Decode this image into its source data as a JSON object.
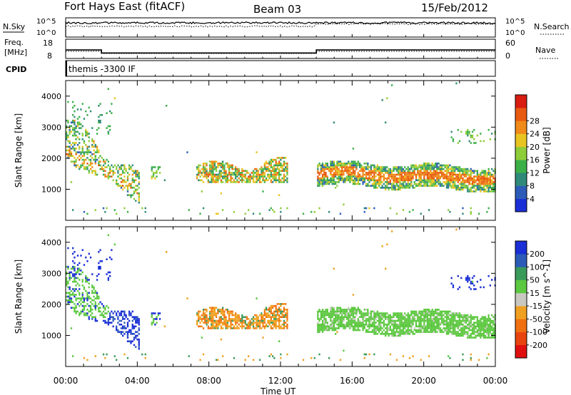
{
  "header": {
    "station": "Fort Hays East (fitACF)",
    "beam": "Beam 03",
    "date": "15/Feb/2012"
  },
  "noise_panel": {
    "left_label": "N.Sky",
    "right_label": "N.Search",
    "left_ticks": [
      "10^5",
      "10^0"
    ],
    "right_ticks": [
      "10^5",
      "10^0"
    ]
  },
  "freq_panel": {
    "label_line1": "Freq.",
    "label_line2": "[MHz]",
    "right_label": "Nave",
    "left_ticks": [
      "18",
      "8"
    ],
    "right_ticks": [
      "60",
      "0"
    ]
  },
  "cpid_panel": {
    "label": "CPID",
    "program": "themis -3300 IF"
  },
  "chart_data": [
    {
      "type": "heatmap",
      "title": "",
      "ylabel": "Slant Range [km]",
      "ylim": [
        0,
        4500
      ],
      "yticks": [
        "1000",
        "2000",
        "3000",
        "4000"
      ],
      "xlim": [
        "00:00",
        "24:00"
      ],
      "colorbar": {
        "label": "Power [dB]",
        "ticks": [
          "4",
          "8",
          "12",
          "16",
          "20",
          "24",
          "28"
        ],
        "colors": [
          "#1a2fd6",
          "#2c5cb8",
          "#2f8a7a",
          "#3cb048",
          "#8fcc3a",
          "#e8c420",
          "#f08a18",
          "#e85a10",
          "#d81c10"
        ]
      },
      "echo_regions": [
        {
          "t_start": 0.0,
          "t_end": 4.0,
          "range_km": [
            800,
            3600
          ],
          "dominant_db": 14
        },
        {
          "t_start": 4.8,
          "t_end": 5.2,
          "range_km": [
            1300,
            1700
          ],
          "dominant_db": 12
        },
        {
          "t_start": 7.2,
          "t_end": 12.3,
          "range_km": [
            1100,
            1800
          ],
          "dominant_db": 18
        },
        {
          "t_start": 14.0,
          "t_end": 24.0,
          "range_km": [
            1000,
            2000
          ],
          "dominant_db": 22
        }
      ]
    },
    {
      "type": "heatmap",
      "title": "",
      "ylabel": "Slant Range [km]",
      "ylim": [
        0,
        4500
      ],
      "yticks": [
        "1000",
        "2000",
        "3000",
        "4000"
      ],
      "xlim": [
        "00:00",
        "24:00"
      ],
      "colorbar": {
        "label": "Velocity [m s^-1]",
        "ticks": [
          "200",
          "100",
          "50",
          "15",
          "-15",
          "-50",
          "-100",
          "-200"
        ],
        "colors": [
          "#1a2fd6",
          "#2c5cb8",
          "#3a9a5a",
          "#5cc840",
          "#c8c8c0",
          "#f0a020",
          "#f07010",
          "#e84410",
          "#e01010"
        ]
      },
      "echo_regions": [
        {
          "t_start": 0.0,
          "t_end": 2.5,
          "range_km": [
            1600,
            2400
          ],
          "dominant_ms": 0
        },
        {
          "t_start": 1.0,
          "t_end": 3.5,
          "range_km": [
            1100,
            3600
          ],
          "dominant_ms": 150
        },
        {
          "t_start": 7.2,
          "t_end": 12.3,
          "range_km": [
            1100,
            1800
          ],
          "dominant_ms": -60
        },
        {
          "t_start": 14.0,
          "t_end": 24.0,
          "range_km": [
            1100,
            2000
          ],
          "dominant_ms": 0
        }
      ]
    }
  ],
  "x_axis": {
    "label": "Time UT",
    "ticks": [
      "00:00",
      "04:00",
      "08:00",
      "12:00",
      "16:00",
      "20:00",
      "00:00"
    ]
  }
}
